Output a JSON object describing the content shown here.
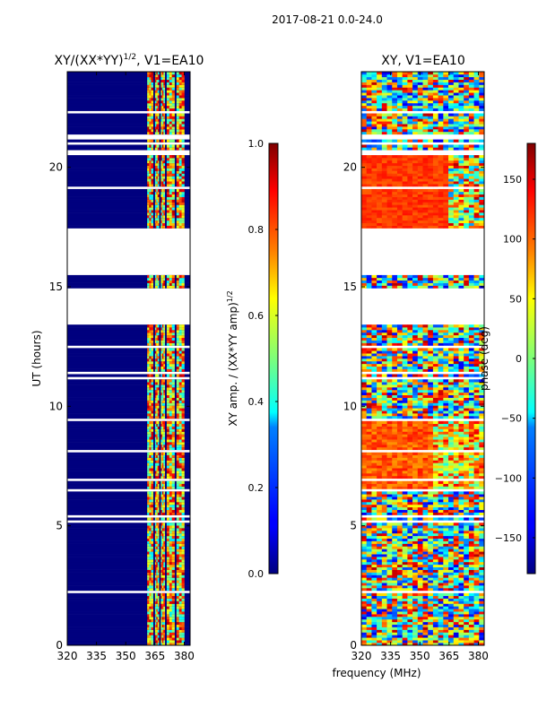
{
  "figure_title": "2017-08-21 0.0-24.0",
  "shared_xlabel": "frequency (MHz)",
  "colors": {
    "data_zero": "#00007f",
    "data_mid": "#00ffff",
    "gap": "#ffffff"
  },
  "chart_data": [
    {
      "type": "heatmap",
      "title": "XY/(XX*YY)",
      "title_sup": "1/2",
      "title_suffix": ", V1=EA10",
      "xlabel": "",
      "ylabel": "UT (hours)",
      "xlim": [
        320,
        383
      ],
      "ylim": [
        0,
        24
      ],
      "xticks": [
        "320",
        "335",
        "350",
        "365",
        "380"
      ],
      "xtick_values": [
        320,
        335,
        350,
        365,
        380
      ],
      "yticks": [
        "0",
        "5",
        "10",
        "15",
        "20"
      ],
      "ytick_values": [
        0,
        5,
        10,
        15,
        20
      ],
      "colorbar": {
        "label": "XY amp. / (XX*YY amp)",
        "label_sup": "1/2",
        "range": [
          0.0,
          1.0
        ],
        "ticks": [
          "0.0",
          "0.2",
          "0.4",
          "0.6",
          "0.8",
          "1.0"
        ],
        "tick_values": [
          0.0,
          0.2,
          0.4,
          0.6,
          0.8,
          1.0
        ]
      },
      "data_gaps_hours": [
        [
          13.4,
          14.8
        ],
        [
          15.5,
          17.4
        ],
        [
          20.5,
          20.6
        ]
      ],
      "bright_channels_MHz": [
        [
          361,
          364
        ],
        [
          365,
          367
        ],
        [
          368,
          370
        ],
        [
          371,
          375
        ],
        [
          376,
          380
        ]
      ]
    },
    {
      "type": "heatmap",
      "title": "XY, V1=EA10",
      "xlabel": "frequency (MHz)",
      "ylabel": "",
      "xlim": [
        320,
        383
      ],
      "ylim": [
        0,
        24
      ],
      "xticks": [
        "320",
        "335",
        "350",
        "365",
        "380"
      ],
      "xtick_values": [
        320,
        335,
        350,
        365,
        380
      ],
      "yticks": [
        "0",
        "5",
        "10",
        "15",
        "20"
      ],
      "ytick_values": [
        0,
        5,
        10,
        15,
        20
      ],
      "colorbar": {
        "label": "phase (deg)",
        "range": [
          -180,
          180
        ],
        "ticks": [
          "−150",
          "−100",
          "−50",
          "0",
          "50",
          "100",
          "150"
        ],
        "tick_values": [
          -150,
          -100,
          -50,
          0,
          50,
          100,
          150
        ]
      },
      "data_gaps_hours": [
        [
          13.4,
          14.8
        ],
        [
          15.5,
          17.4
        ],
        [
          20.5,
          20.6
        ]
      ]
    }
  ]
}
